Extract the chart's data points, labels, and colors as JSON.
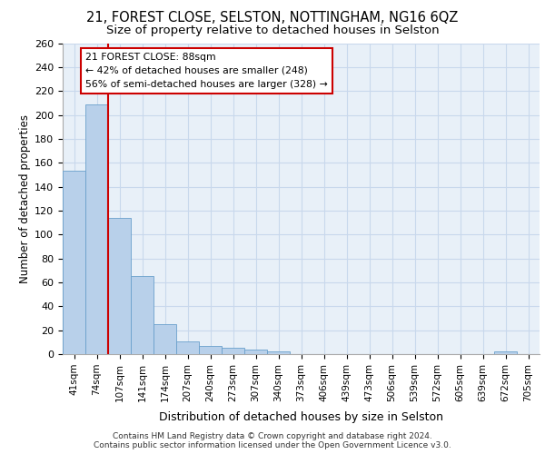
{
  "title1": "21, FOREST CLOSE, SELSTON, NOTTINGHAM, NG16 6QZ",
  "title2": "Size of property relative to detached houses in Selston",
  "xlabel": "Distribution of detached houses by size in Selston",
  "ylabel": "Number of detached properties",
  "footer1": "Contains HM Land Registry data © Crown copyright and database right 2024.",
  "footer2": "Contains public sector information licensed under the Open Government Licence v3.0.",
  "bin_labels": [
    "41sqm",
    "74sqm",
    "107sqm",
    "141sqm",
    "174sqm",
    "207sqm",
    "240sqm",
    "273sqm",
    "307sqm",
    "340sqm",
    "373sqm",
    "406sqm",
    "439sqm",
    "473sqm",
    "506sqm",
    "539sqm",
    "572sqm",
    "605sqm",
    "639sqm",
    "672sqm",
    "705sqm"
  ],
  "bar_values": [
    153,
    209,
    114,
    65,
    25,
    11,
    7,
    5,
    4,
    2,
    0,
    0,
    0,
    0,
    0,
    0,
    0,
    0,
    0,
    2,
    0
  ],
  "bar_color": "#b8d0ea",
  "bar_edge_color": "#6aa0cc",
  "grid_color": "#c8d8ec",
  "vline_color": "#cc0000",
  "annotation_text": "21 FOREST CLOSE: 88sqm\n← 42% of detached houses are smaller (248)\n56% of semi-detached houses are larger (328) →",
  "annotation_box_color": "#ffffff",
  "annotation_box_edge": "#cc0000",
  "ylim": [
    0,
    260
  ],
  "yticks": [
    0,
    20,
    40,
    60,
    80,
    100,
    120,
    140,
    160,
    180,
    200,
    220,
    240,
    260
  ],
  "bg_color": "#e8f0f8",
  "title1_fontsize": 10.5,
  "title2_fontsize": 9.5,
  "xlabel_fontsize": 9,
  "ylabel_fontsize": 8.5,
  "tick_fontsize": 8,
  "footer_fontsize": 6.5
}
